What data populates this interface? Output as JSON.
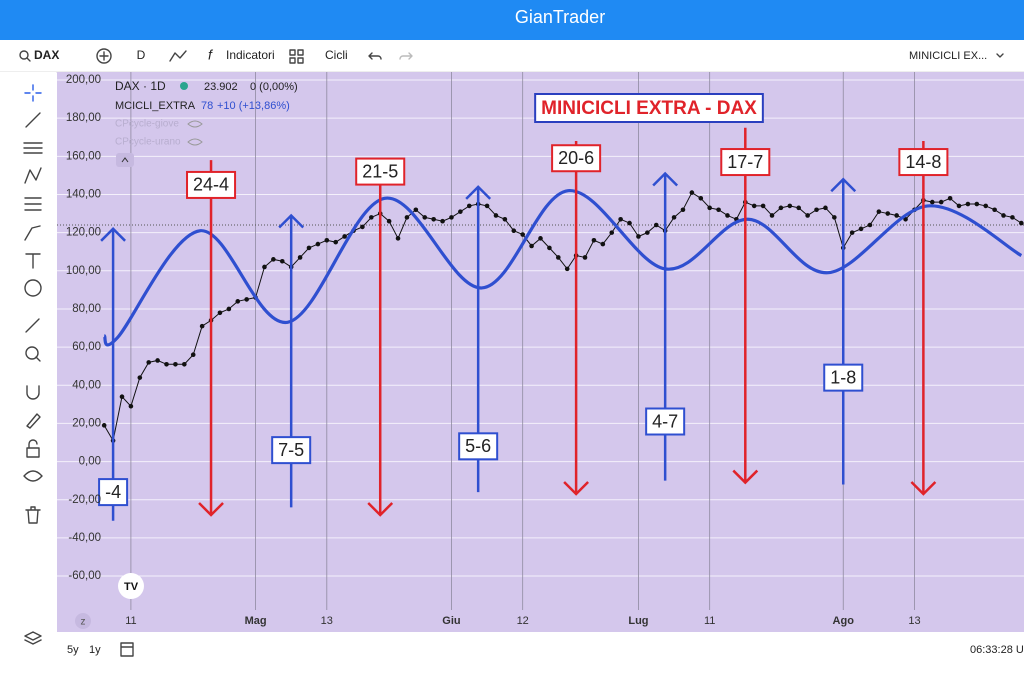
{
  "header": {
    "title": "GianTrader"
  },
  "toolbar": {
    "symbol": "DAX",
    "interval": "D",
    "indicators": "Indicatori",
    "cycles": "Cicli",
    "layout": "MINICICLI EX..."
  },
  "legend": {
    "price": "23.902",
    "change": "0 (0,00%)",
    "indicator_value": "78",
    "indicator_change": "+10 (+13,86%)",
    "hidden": [
      "CPcycle-giove",
      "CPcycle-urano"
    ]
  },
  "bottom_bar": {
    "scale_key": "z",
    "ranges": [
      "5y",
      "1y"
    ],
    "clock": "06:33:28 U"
  },
  "chart_data": {
    "type": "line",
    "title": "MINICICLI EXTRA - DAX",
    "xlim": [
      -5.3,
      103.3
    ],
    "xticks": [
      {
        "value": 3,
        "label": "11"
      },
      {
        "value": 17,
        "label": "Mag"
      },
      {
        "value": 25,
        "label": "13"
      },
      {
        "value": 39,
        "label": "Giu"
      },
      {
        "value": 47,
        "label": "12"
      },
      {
        "value": 60,
        "label": "Lug"
      },
      {
        "value": 68,
        "label": "11"
      },
      {
        "value": 83,
        "label": "Ago"
      },
      {
        "value": 91,
        "label": "13"
      }
    ],
    "ylim": [
      -77.8,
      204.2
    ],
    "yticks": [
      {
        "value": 200,
        "label": "200,00"
      },
      {
        "value": 180,
        "label": "180,00"
      },
      {
        "value": 160,
        "label": "160,00"
      },
      {
        "value": 140,
        "label": "140,00"
      },
      {
        "value": 120,
        "label": "120,00"
      },
      {
        "value": 100,
        "label": "100,00"
      },
      {
        "value": 80,
        "label": "80,00"
      },
      {
        "value": 60,
        "label": "60,00"
      },
      {
        "value": 40,
        "label": "40,00"
      },
      {
        "value": 20,
        "label": "20,00"
      },
      {
        "value": 0,
        "label": "0,00"
      },
      {
        "value": -20,
        "label": "-20,00"
      },
      {
        "value": -40,
        "label": "-40,00"
      },
      {
        "value": -60,
        "label": "-60,00"
      }
    ],
    "grid": true,
    "price_line": 124,
    "series": [
      {
        "name": "DAX · 1D",
        "color": "#111111",
        "markers": true,
        "x": [
          0,
          1,
          2,
          3,
          4,
          5,
          6,
          7,
          8,
          9,
          10,
          11,
          12,
          13,
          14,
          15,
          16,
          17,
          18,
          19,
          20,
          21,
          22,
          23,
          24,
          25,
          26,
          27,
          28,
          29,
          30,
          31,
          32,
          33,
          34,
          35,
          36,
          37,
          38,
          39,
          40,
          41,
          42,
          43,
          44,
          45,
          46,
          47,
          48,
          49,
          50,
          51,
          52,
          53,
          54,
          55,
          56,
          57,
          58,
          59,
          60,
          61,
          62,
          63,
          64,
          65,
          66,
          67,
          68,
          69,
          70,
          71,
          72,
          73,
          74,
          75,
          76,
          77,
          78,
          79,
          80,
          81,
          82,
          83,
          84,
          85,
          86,
          87,
          88,
          89,
          90,
          91,
          92,
          93,
          94,
          95,
          96,
          97,
          98,
          99,
          100,
          101,
          102,
          103
        ],
        "values": [
          19,
          11,
          34,
          29,
          44,
          52,
          53,
          51,
          51,
          51,
          56,
          71,
          74,
          78,
          80,
          84,
          85,
          86,
          102,
          106,
          105,
          102,
          107,
          112,
          114,
          116,
          115,
          118,
          121,
          123,
          128,
          130,
          126,
          117,
          128,
          132,
          128,
          127,
          126,
          128,
          131,
          134,
          135,
          134,
          129,
          127,
          121,
          119,
          113,
          117,
          112,
          107,
          101,
          108,
          107,
          116,
          114,
          120,
          127,
          125,
          118,
          120,
          124,
          121,
          128,
          132,
          141,
          138,
          133,
          132,
          129,
          127,
          136,
          134,
          134,
          129,
          133,
          134,
          133,
          129,
          132,
          133,
          128,
          112,
          120,
          122,
          124,
          131,
          130,
          129,
          127,
          132,
          137,
          136,
          136,
          138,
          134,
          135,
          135,
          134,
          132,
          129,
          128,
          125
        ]
      },
      {
        "name": "MCICLI_EXTRA",
        "color": "#2f4fd0",
        "smooth": true,
        "x": [
          0,
          1.5,
          10.8,
          20.6,
          31.5,
          42.4,
          52.1,
          63,
          72.3,
          81.3,
          92.5,
          103
        ],
        "values": [
          66,
          65,
          121,
          73,
          138,
          91,
          142,
          101,
          127,
          99,
          134,
          108
        ]
      }
    ],
    "annotations": [
      {
        "label": "-4",
        "x": 1,
        "y": [
          -31,
          122
        ],
        "label_y": -16,
        "color": "#2f4fd0"
      },
      {
        "label": "24-4",
        "x": 12,
        "y": [
          158,
          -28
        ],
        "label_y": 145,
        "color": "#e0232a"
      },
      {
        "label": "7-5",
        "x": 21,
        "y": [
          -24,
          129
        ],
        "label_y": 6,
        "color": "#2f4fd0"
      },
      {
        "label": "21-5",
        "x": 31,
        "y": [
          159,
          -28
        ],
        "label_y": 152,
        "color": "#e0232a"
      },
      {
        "label": "5-6",
        "x": 42,
        "y": [
          -16,
          144
        ],
        "label_y": 8,
        "color": "#2f4fd0"
      },
      {
        "label": "20-6",
        "x": 53,
        "y": [
          168,
          -17
        ],
        "label_y": 159,
        "color": "#e0232a"
      },
      {
        "label": "4-7",
        "x": 63,
        "y": [
          -10,
          151
        ],
        "label_y": 21,
        "color": "#2f4fd0"
      },
      {
        "label": "17-7",
        "x": 72,
        "y": [
          175,
          -11
        ],
        "label_y": 157,
        "color": "#e0232a"
      },
      {
        "label": "1-8",
        "x": 83,
        "y": [
          -12,
          148
        ],
        "label_y": 44,
        "color": "#2f4fd0"
      },
      {
        "label": "14-8",
        "x": 92,
        "y": [
          168,
          -17
        ],
        "label_y": 157,
        "color": "#e0232a"
      }
    ]
  }
}
